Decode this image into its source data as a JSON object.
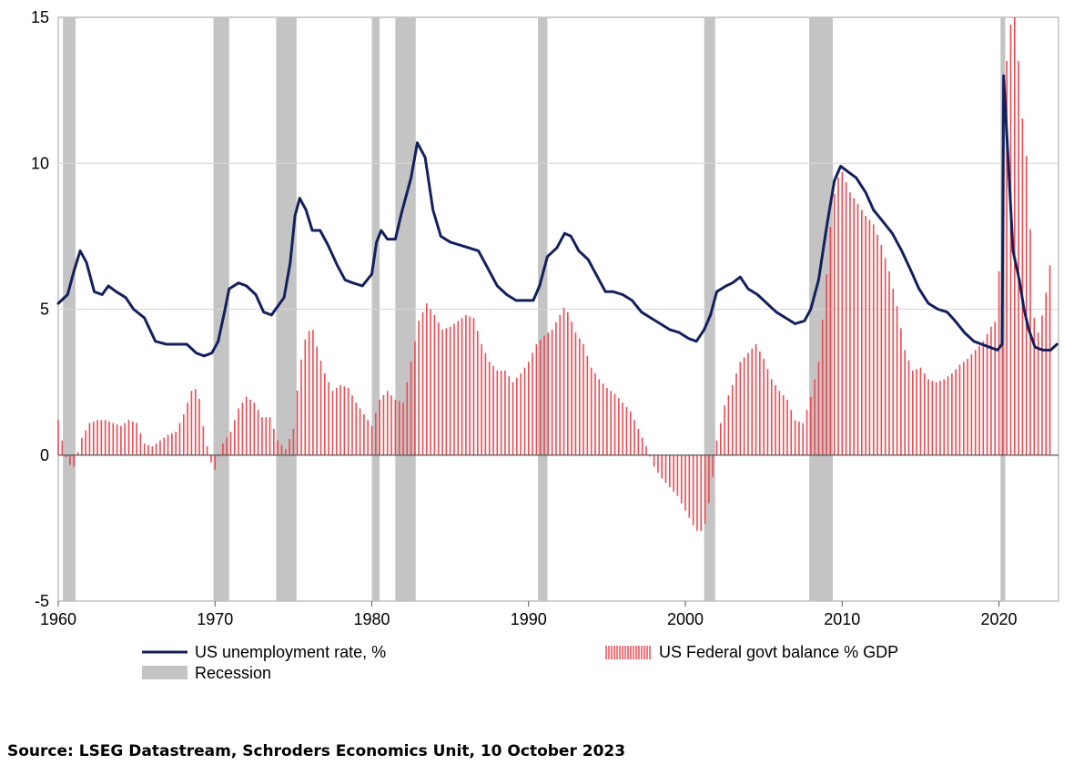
{
  "chart_data": {
    "type": "line+bar",
    "title": "",
    "x_range": [
      1960,
      2023.8
    ],
    "x_ticks": [
      "1960",
      "1970",
      "1980",
      "1990",
      "2000",
      "2010",
      "2020"
    ],
    "y_range": [
      -5,
      15
    ],
    "y_ticks": [
      "15",
      "10",
      "5",
      "0",
      "-5"
    ],
    "grid": "horizontal",
    "legend_position": "bottom",
    "legend": {
      "unemployment": "US unemployment rate, %",
      "balance": "US Federal govt balance % GDP",
      "recession": "Recession"
    },
    "colors": {
      "unemployment": "#13205e",
      "balance": "#ec4a52",
      "recession": "#c4c4c4",
      "grid": "#d6d6d6"
    },
    "recessions": [
      [
        1960.3,
        1961.1
      ],
      [
        1969.9,
        1970.9
      ],
      [
        1973.9,
        1975.2
      ],
      [
        1980.0,
        1980.5
      ],
      [
        1981.5,
        1982.8
      ],
      [
        1990.6,
        1991.2
      ],
      [
        2001.2,
        2001.9
      ],
      [
        2007.9,
        2009.4
      ],
      [
        2020.1,
        2020.4
      ]
    ],
    "series": [
      {
        "name": "US unemployment rate, %",
        "kind": "line",
        "points": [
          [
            1960.0,
            5.2
          ],
          [
            1960.6,
            5.5
          ],
          [
            1961.0,
            6.3
          ],
          [
            1961.4,
            7.0
          ],
          [
            1961.8,
            6.6
          ],
          [
            1962.3,
            5.6
          ],
          [
            1962.8,
            5.5
          ],
          [
            1963.2,
            5.8
          ],
          [
            1963.7,
            5.6
          ],
          [
            1964.3,
            5.4
          ],
          [
            1964.8,
            5.0
          ],
          [
            1965.5,
            4.7
          ],
          [
            1966.2,
            3.9
          ],
          [
            1966.9,
            3.8
          ],
          [
            1967.6,
            3.8
          ],
          [
            1968.2,
            3.8
          ],
          [
            1968.8,
            3.5
          ],
          [
            1969.3,
            3.4
          ],
          [
            1969.8,
            3.5
          ],
          [
            1970.2,
            3.9
          ],
          [
            1970.6,
            4.9
          ],
          [
            1970.9,
            5.7
          ],
          [
            1971.5,
            5.9
          ],
          [
            1972.0,
            5.8
          ],
          [
            1972.6,
            5.5
          ],
          [
            1973.1,
            4.9
          ],
          [
            1973.6,
            4.8
          ],
          [
            1974.0,
            5.1
          ],
          [
            1974.4,
            5.4
          ],
          [
            1974.8,
            6.6
          ],
          [
            1975.1,
            8.2
          ],
          [
            1975.4,
            8.8
          ],
          [
            1975.8,
            8.4
          ],
          [
            1976.2,
            7.7
          ],
          [
            1976.7,
            7.7
          ],
          [
            1977.2,
            7.2
          ],
          [
            1977.8,
            6.5
          ],
          [
            1978.3,
            6.0
          ],
          [
            1978.8,
            5.9
          ],
          [
            1979.4,
            5.8
          ],
          [
            1980.0,
            6.2
          ],
          [
            1980.3,
            7.3
          ],
          [
            1980.6,
            7.7
          ],
          [
            1981.0,
            7.4
          ],
          [
            1981.5,
            7.4
          ],
          [
            1981.9,
            8.3
          ],
          [
            1982.5,
            9.5
          ],
          [
            1982.9,
            10.7
          ],
          [
            1983.4,
            10.2
          ],
          [
            1983.9,
            8.4
          ],
          [
            1984.4,
            7.5
          ],
          [
            1985.0,
            7.3
          ],
          [
            1985.6,
            7.2
          ],
          [
            1986.2,
            7.1
          ],
          [
            1986.8,
            7.0
          ],
          [
            1987.4,
            6.4
          ],
          [
            1988.0,
            5.8
          ],
          [
            1988.6,
            5.5
          ],
          [
            1989.2,
            5.3
          ],
          [
            1989.8,
            5.3
          ],
          [
            1990.3,
            5.3
          ],
          [
            1990.7,
            5.8
          ],
          [
            1991.2,
            6.8
          ],
          [
            1991.8,
            7.1
          ],
          [
            1992.3,
            7.6
          ],
          [
            1992.7,
            7.5
          ],
          [
            1993.2,
            7.0
          ],
          [
            1993.8,
            6.7
          ],
          [
            1994.3,
            6.2
          ],
          [
            1994.9,
            5.6
          ],
          [
            1995.4,
            5.6
          ],
          [
            1996.0,
            5.5
          ],
          [
            1996.6,
            5.3
          ],
          [
            1997.2,
            4.9
          ],
          [
            1997.8,
            4.7
          ],
          [
            1998.4,
            4.5
          ],
          [
            1999.0,
            4.3
          ],
          [
            1999.6,
            4.2
          ],
          [
            2000.2,
            4.0
          ],
          [
            2000.7,
            3.9
          ],
          [
            2001.2,
            4.3
          ],
          [
            2001.6,
            4.8
          ],
          [
            2002.0,
            5.6
          ],
          [
            2002.6,
            5.8
          ],
          [
            2003.0,
            5.9
          ],
          [
            2003.5,
            6.1
          ],
          [
            2004.0,
            5.7
          ],
          [
            2004.6,
            5.5
          ],
          [
            2005.2,
            5.2
          ],
          [
            2005.8,
            4.9
          ],
          [
            2006.4,
            4.7
          ],
          [
            2007.0,
            4.5
          ],
          [
            2007.6,
            4.6
          ],
          [
            2008.0,
            5.0
          ],
          [
            2008.5,
            6.0
          ],
          [
            2009.0,
            7.8
          ],
          [
            2009.5,
            9.4
          ],
          [
            2009.9,
            9.9
          ],
          [
            2010.4,
            9.7
          ],
          [
            2010.9,
            9.5
          ],
          [
            2011.5,
            9.0
          ],
          [
            2012.0,
            8.4
          ],
          [
            2012.6,
            8.0
          ],
          [
            2013.2,
            7.6
          ],
          [
            2013.8,
            7.0
          ],
          [
            2014.4,
            6.3
          ],
          [
            2014.9,
            5.7
          ],
          [
            2015.5,
            5.2
          ],
          [
            2016.1,
            5.0
          ],
          [
            2016.7,
            4.9
          ],
          [
            2017.2,
            4.6
          ],
          [
            2017.8,
            4.2
          ],
          [
            2018.4,
            3.9
          ],
          [
            2018.9,
            3.8
          ],
          [
            2019.4,
            3.7
          ],
          [
            2019.9,
            3.6
          ],
          [
            2020.2,
            3.8
          ],
          [
            2020.3,
            13.0
          ],
          [
            2020.6,
            10.0
          ],
          [
            2020.9,
            7.0
          ],
          [
            2021.3,
            6.0
          ],
          [
            2021.6,
            5.0
          ],
          [
            2021.9,
            4.3
          ],
          [
            2022.3,
            3.7
          ],
          [
            2022.8,
            3.6
          ],
          [
            2023.3,
            3.6
          ],
          [
            2023.7,
            3.8
          ]
        ]
      },
      {
        "name": "US Federal govt balance % GDP",
        "kind": "bar",
        "points": [
          [
            1960.0,
            1.2
          ],
          [
            1960.25,
            0.5
          ],
          [
            1960.6,
            -0.3
          ],
          [
            1961.0,
            -0.4
          ],
          [
            1961.5,
            0.6
          ],
          [
            1962.0,
            1.1
          ],
          [
            1962.5,
            1.2
          ],
          [
            1963.0,
            1.2
          ],
          [
            1963.5,
            1.1
          ],
          [
            1964.0,
            1.0
          ],
          [
            1964.5,
            1.2
          ],
          [
            1965.0,
            1.1
          ],
          [
            1965.5,
            0.4
          ],
          [
            1966.0,
            0.3
          ],
          [
            1966.5,
            0.5
          ],
          [
            1967.0,
            0.7
          ],
          [
            1967.5,
            0.8
          ],
          [
            1968.0,
            1.4
          ],
          [
            1968.5,
            2.2
          ],
          [
            1968.9,
            2.3
          ],
          [
            1969.3,
            0.8
          ],
          [
            1969.7,
            -0.2
          ],
          [
            1970.0,
            -0.5
          ],
          [
            1970.5,
            0.4
          ],
          [
            1971.0,
            0.8
          ],
          [
            1971.5,
            1.6
          ],
          [
            1972.0,
            2.0
          ],
          [
            1972.5,
            1.8
          ],
          [
            1973.0,
            1.3
          ],
          [
            1973.5,
            1.3
          ],
          [
            1974.0,
            0.5
          ],
          [
            1974.5,
            0.2
          ],
          [
            1975.0,
            0.9
          ],
          [
            1975.4,
            3.0
          ],
          [
            1975.8,
            4.1
          ],
          [
            1976.2,
            4.4
          ],
          [
            1976.6,
            3.5
          ],
          [
            1977.0,
            2.8
          ],
          [
            1977.5,
            2.2
          ],
          [
            1978.0,
            2.4
          ],
          [
            1978.5,
            2.3
          ],
          [
            1979.0,
            1.8
          ],
          [
            1979.5,
            1.4
          ],
          [
            1980.0,
            1.0
          ],
          [
            1980.5,
            1.9
          ],
          [
            1981.0,
            2.2
          ],
          [
            1981.5,
            1.9
          ],
          [
            1982.0,
            1.8
          ],
          [
            1982.5,
            3.2
          ],
          [
            1983.0,
            4.6
          ],
          [
            1983.5,
            5.2
          ],
          [
            1984.0,
            4.8
          ],
          [
            1984.5,
            4.3
          ],
          [
            1985.0,
            4.4
          ],
          [
            1985.5,
            4.6
          ],
          [
            1986.0,
            4.8
          ],
          [
            1986.5,
            4.7
          ],
          [
            1987.0,
            3.8
          ],
          [
            1987.5,
            3.2
          ],
          [
            1988.0,
            2.9
          ],
          [
            1988.5,
            2.9
          ],
          [
            1989.0,
            2.5
          ],
          [
            1989.5,
            2.8
          ],
          [
            1990.0,
            3.2
          ],
          [
            1990.5,
            3.8
          ],
          [
            1991.0,
            4.1
          ],
          [
            1991.5,
            4.3
          ],
          [
            1992.0,
            4.8
          ],
          [
            1992.3,
            5.1
          ],
          [
            1992.6,
            4.8
          ],
          [
            1993.0,
            4.2
          ],
          [
            1993.5,
            3.8
          ],
          [
            1994.0,
            3.0
          ],
          [
            1994.5,
            2.6
          ],
          [
            1995.0,
            2.3
          ],
          [
            1995.5,
            2.1
          ],
          [
            1996.0,
            1.8
          ],
          [
            1996.5,
            1.5
          ],
          [
            1997.0,
            0.9
          ],
          [
            1997.5,
            0.3
          ],
          [
            1998.0,
            -0.4
          ],
          [
            1998.5,
            -0.8
          ],
          [
            1999.0,
            -1.1
          ],
          [
            1999.5,
            -1.4
          ],
          [
            2000.0,
            -1.9
          ],
          [
            2000.5,
            -2.4
          ],
          [
            2000.9,
            -2.7
          ],
          [
            2001.3,
            -2.3
          ],
          [
            2001.7,
            -1.0
          ],
          [
            2002.0,
            0.5
          ],
          [
            2002.5,
            1.7
          ],
          [
            2003.0,
            2.4
          ],
          [
            2003.5,
            3.2
          ],
          [
            2004.0,
            3.5
          ],
          [
            2004.5,
            3.8
          ],
          [
            2005.0,
            3.3
          ],
          [
            2005.5,
            2.6
          ],
          [
            2006.0,
            2.2
          ],
          [
            2006.5,
            1.9
          ],
          [
            2007.0,
            1.2
          ],
          [
            2007.5,
            1.1
          ],
          [
            2008.0,
            2.0
          ],
          [
            2008.5,
            3.2
          ],
          [
            2008.9,
            5.5
          ],
          [
            2009.2,
            7.6
          ],
          [
            2009.6,
            9.4
          ],
          [
            2010.0,
            9.7
          ],
          [
            2010.5,
            9.0
          ],
          [
            2011.0,
            8.6
          ],
          [
            2011.5,
            8.2
          ],
          [
            2012.0,
            7.9
          ],
          [
            2012.5,
            7.2
          ],
          [
            2013.0,
            6.3
          ],
          [
            2013.5,
            5.1
          ],
          [
            2014.0,
            3.6
          ],
          [
            2014.5,
            2.9
          ],
          [
            2015.0,
            3.0
          ],
          [
            2015.5,
            2.6
          ],
          [
            2016.0,
            2.5
          ],
          [
            2016.5,
            2.6
          ],
          [
            2017.0,
            2.8
          ],
          [
            2017.5,
            3.1
          ],
          [
            2018.0,
            3.3
          ],
          [
            2018.5,
            3.6
          ],
          [
            2019.0,
            3.9
          ],
          [
            2019.5,
            4.4
          ],
          [
            2019.8,
            4.6
          ],
          [
            2020.2,
            8.0
          ],
          [
            2020.5,
            13.5
          ],
          [
            2020.8,
            15.0
          ],
          [
            2021.1,
            15.0
          ],
          [
            2021.4,
            12.0
          ],
          [
            2021.7,
            10.6
          ],
          [
            2021.9,
            9.2
          ],
          [
            2022.2,
            4.8
          ],
          [
            2022.5,
            4.2
          ],
          [
            2022.8,
            4.9
          ],
          [
            2023.1,
            5.9
          ],
          [
            2023.4,
            7.1
          ]
        ]
      }
    ]
  },
  "source": "Source: LSEG Datastream, Schroders Economics Unit, 10 October 2023"
}
